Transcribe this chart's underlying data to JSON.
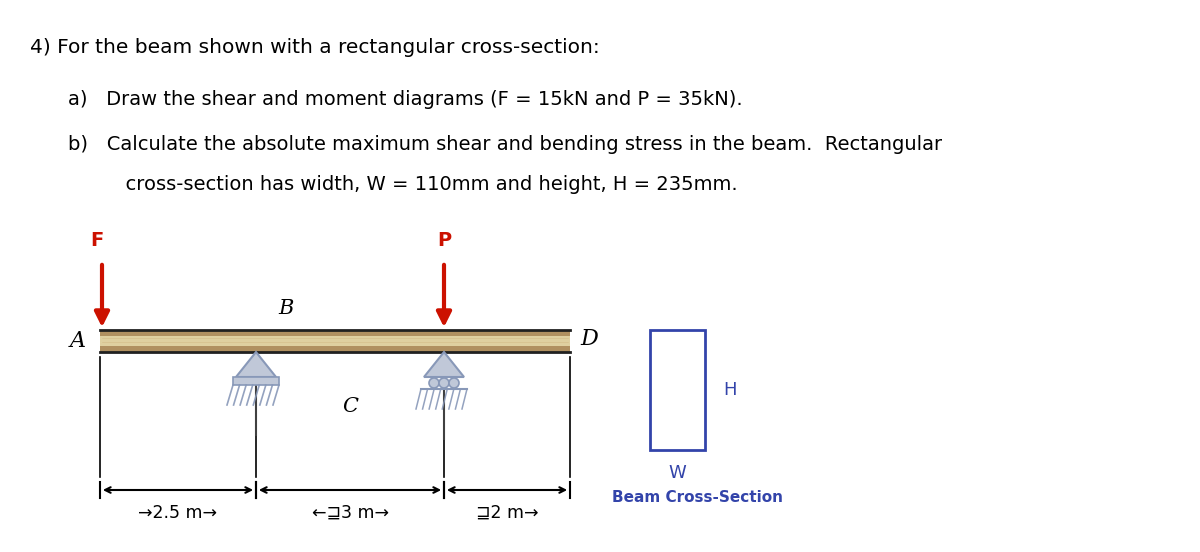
{
  "title_line": "4) For the beam shown with a rectangular cross-section:",
  "item_a": "a)   Draw the shear and moment diagrams (F = 15kN and P = 35kN).",
  "item_b1": "b)   Calculate the absolute maximum shear and bending stress in the beam.  Rectangular",
  "item_b2": "      cross-section has width, W = 110mm and height, H = 235mm.",
  "label_A": "A",
  "label_B": "B",
  "label_C": "C",
  "label_D": "D",
  "label_F": "F",
  "label_P": "P",
  "label_H": "H",
  "label_W": "W",
  "label_beam_section": "Beam Cross-Section",
  "dim_1": "⊒2.5 m→",
  "dim_2": "←⊒3 m→",
  "dim_3": "⊒2 m→",
  "beam_color_top": "#c8b88a",
  "beam_color_mid": "#e8d8b0",
  "beam_edge_color": "#404040",
  "support_tri_color": "#c0c8d8",
  "support_base_color": "#8898b8",
  "arrow_color": "#cc1100",
  "text_color": "#000000",
  "cs_color": "#3344aa",
  "background_color": "#ffffff"
}
